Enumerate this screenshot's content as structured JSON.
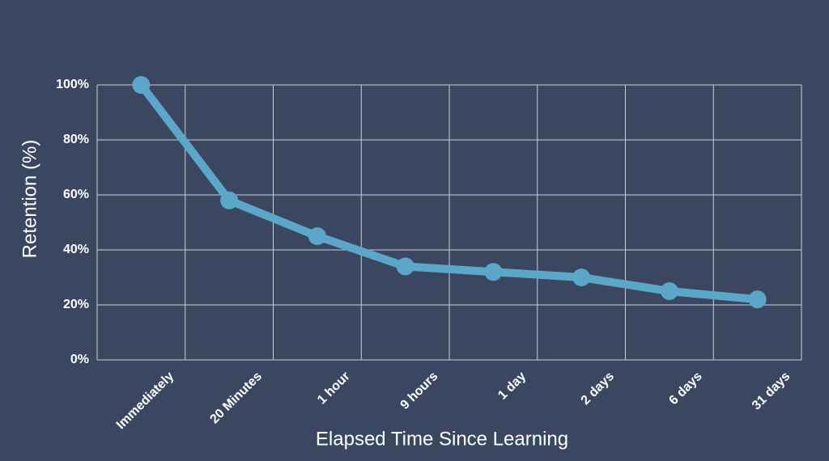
{
  "chart_data": {
    "type": "line",
    "x_label": "Elapsed Time Since Learning",
    "y_label": "Retention (%)",
    "categories": [
      "Immediately",
      "20 Minutes",
      "1 hour",
      "9 hours",
      "1 day",
      "2 days",
      "6 days",
      "31 days"
    ],
    "series": [
      {
        "name": "Retention",
        "color": "#5ba6c9",
        "values": [
          100,
          58,
          45,
          34,
          32,
          30,
          25,
          22
        ]
      }
    ],
    "ylim": [
      0,
      100
    ],
    "yticks": [
      {
        "value": 0,
        "label": "0%"
      },
      {
        "value": 20,
        "label": "20%"
      },
      {
        "value": 40,
        "label": "40%"
      },
      {
        "value": 60,
        "label": "60%"
      },
      {
        "value": 80,
        "label": "80%"
      },
      {
        "value": 100,
        "label": "100%"
      }
    ],
    "grid": true
  }
}
